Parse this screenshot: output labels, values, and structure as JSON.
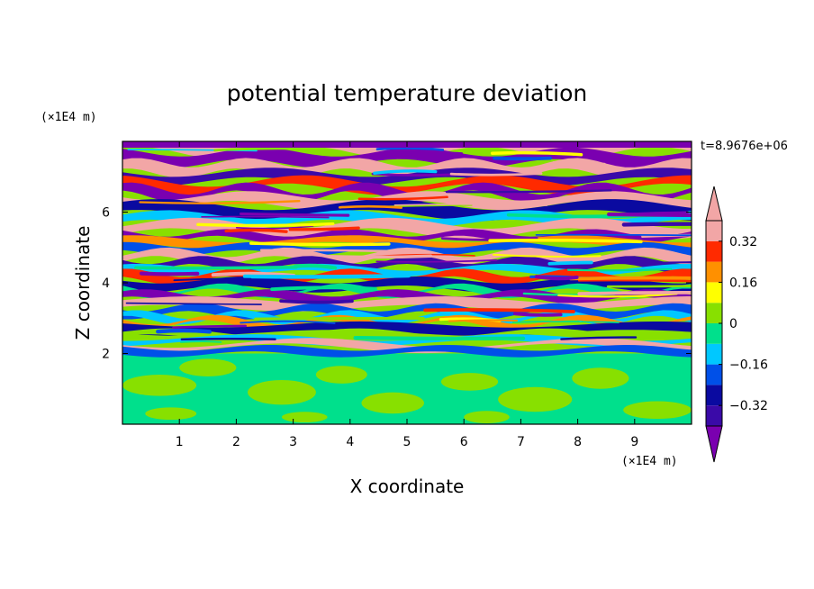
{
  "chart_data": {
    "type": "heatmap",
    "title": "potential temperature deviation",
    "xlabel": "X coordinate",
    "ylabel": "Z coordinate",
    "x_unit": "(×1E4 m)",
    "y_unit": "(×1E4 m)",
    "time_label": "t=8.9676e+06",
    "xlim": [
      0,
      10
    ],
    "ylim": [
      0,
      8
    ],
    "x_ticks": [
      1,
      2,
      3,
      4,
      5,
      6,
      7,
      8,
      9
    ],
    "y_ticks": [
      2,
      4,
      6
    ],
    "x_tick_labels": [
      "1",
      "2",
      "3",
      "4",
      "5",
      "6",
      "7",
      "8",
      "9"
    ],
    "y_tick_labels": [
      "2",
      "4",
      "6"
    ],
    "colorbar": {
      "levels": [
        -0.4,
        -0.32,
        -0.24,
        -0.16,
        -0.08,
        0,
        0.08,
        0.16,
        0.24,
        0.32,
        0.4
      ],
      "colors": [
        "#7a00b0",
        "#3a0aa8",
        "#0a0aa0",
        "#0050e8",
        "#00c8ff",
        "#00e08c",
        "#88e000",
        "#ffff00",
        "#ff9000",
        "#ff2a00",
        "#f2a6a6"
      ],
      "tick_values": [
        0.32,
        0.16,
        0,
        -0.16,
        -0.32
      ],
      "tick_labels": [
        "0.32",
        "0.16",
        "0",
        "-0.16",
        "-0.32"
      ],
      "extend": "both"
    },
    "grid": false,
    "legend": "colorbar right"
  }
}
